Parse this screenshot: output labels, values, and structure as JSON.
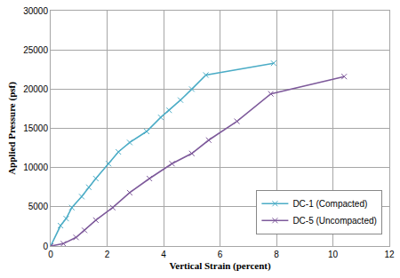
{
  "chart_data": {
    "type": "line",
    "x_label": "Vertical Strain (percent)",
    "y_label": "Applied Pressure (psf)",
    "xlim": [
      0,
      12
    ],
    "xticks": [
      0,
      2,
      4,
      6,
      8,
      10,
      12
    ],
    "ylim": [
      0,
      30000
    ],
    "yticks": [
      0,
      5000,
      10000,
      15000,
      20000,
      25000,
      30000
    ],
    "grid": true,
    "legend": "lower right",
    "marker": "x",
    "series": [
      {
        "name": "DC-1 (Compacted)",
        "color": "#4bacc6",
        "x": [
          0,
          0.35,
          0.55,
          0.75,
          1.1,
          1.35,
          1.6,
          2.05,
          2.4,
          2.8,
          3.4,
          3.9,
          4.2,
          4.6,
          5.0,
          5.5,
          7.9
        ],
        "values": [
          0,
          2600,
          3500,
          4900,
          6300,
          7500,
          8600,
          10500,
          12000,
          13200,
          14600,
          16400,
          17300,
          18600,
          20000,
          21800,
          23300
        ]
      },
      {
        "name": "DC-5 (Uncompacted)",
        "color": "#7e5a9b",
        "x": [
          0,
          0.45,
          0.9,
          1.2,
          1.6,
          2.2,
          2.8,
          3.5,
          4.3,
          5.0,
          5.6,
          6.6,
          7.8,
          10.4
        ],
        "values": [
          0,
          300,
          1100,
          2000,
          3300,
          4900,
          6800,
          8600,
          10500,
          11800,
          13500,
          15900,
          19400,
          21600
        ]
      }
    ]
  }
}
